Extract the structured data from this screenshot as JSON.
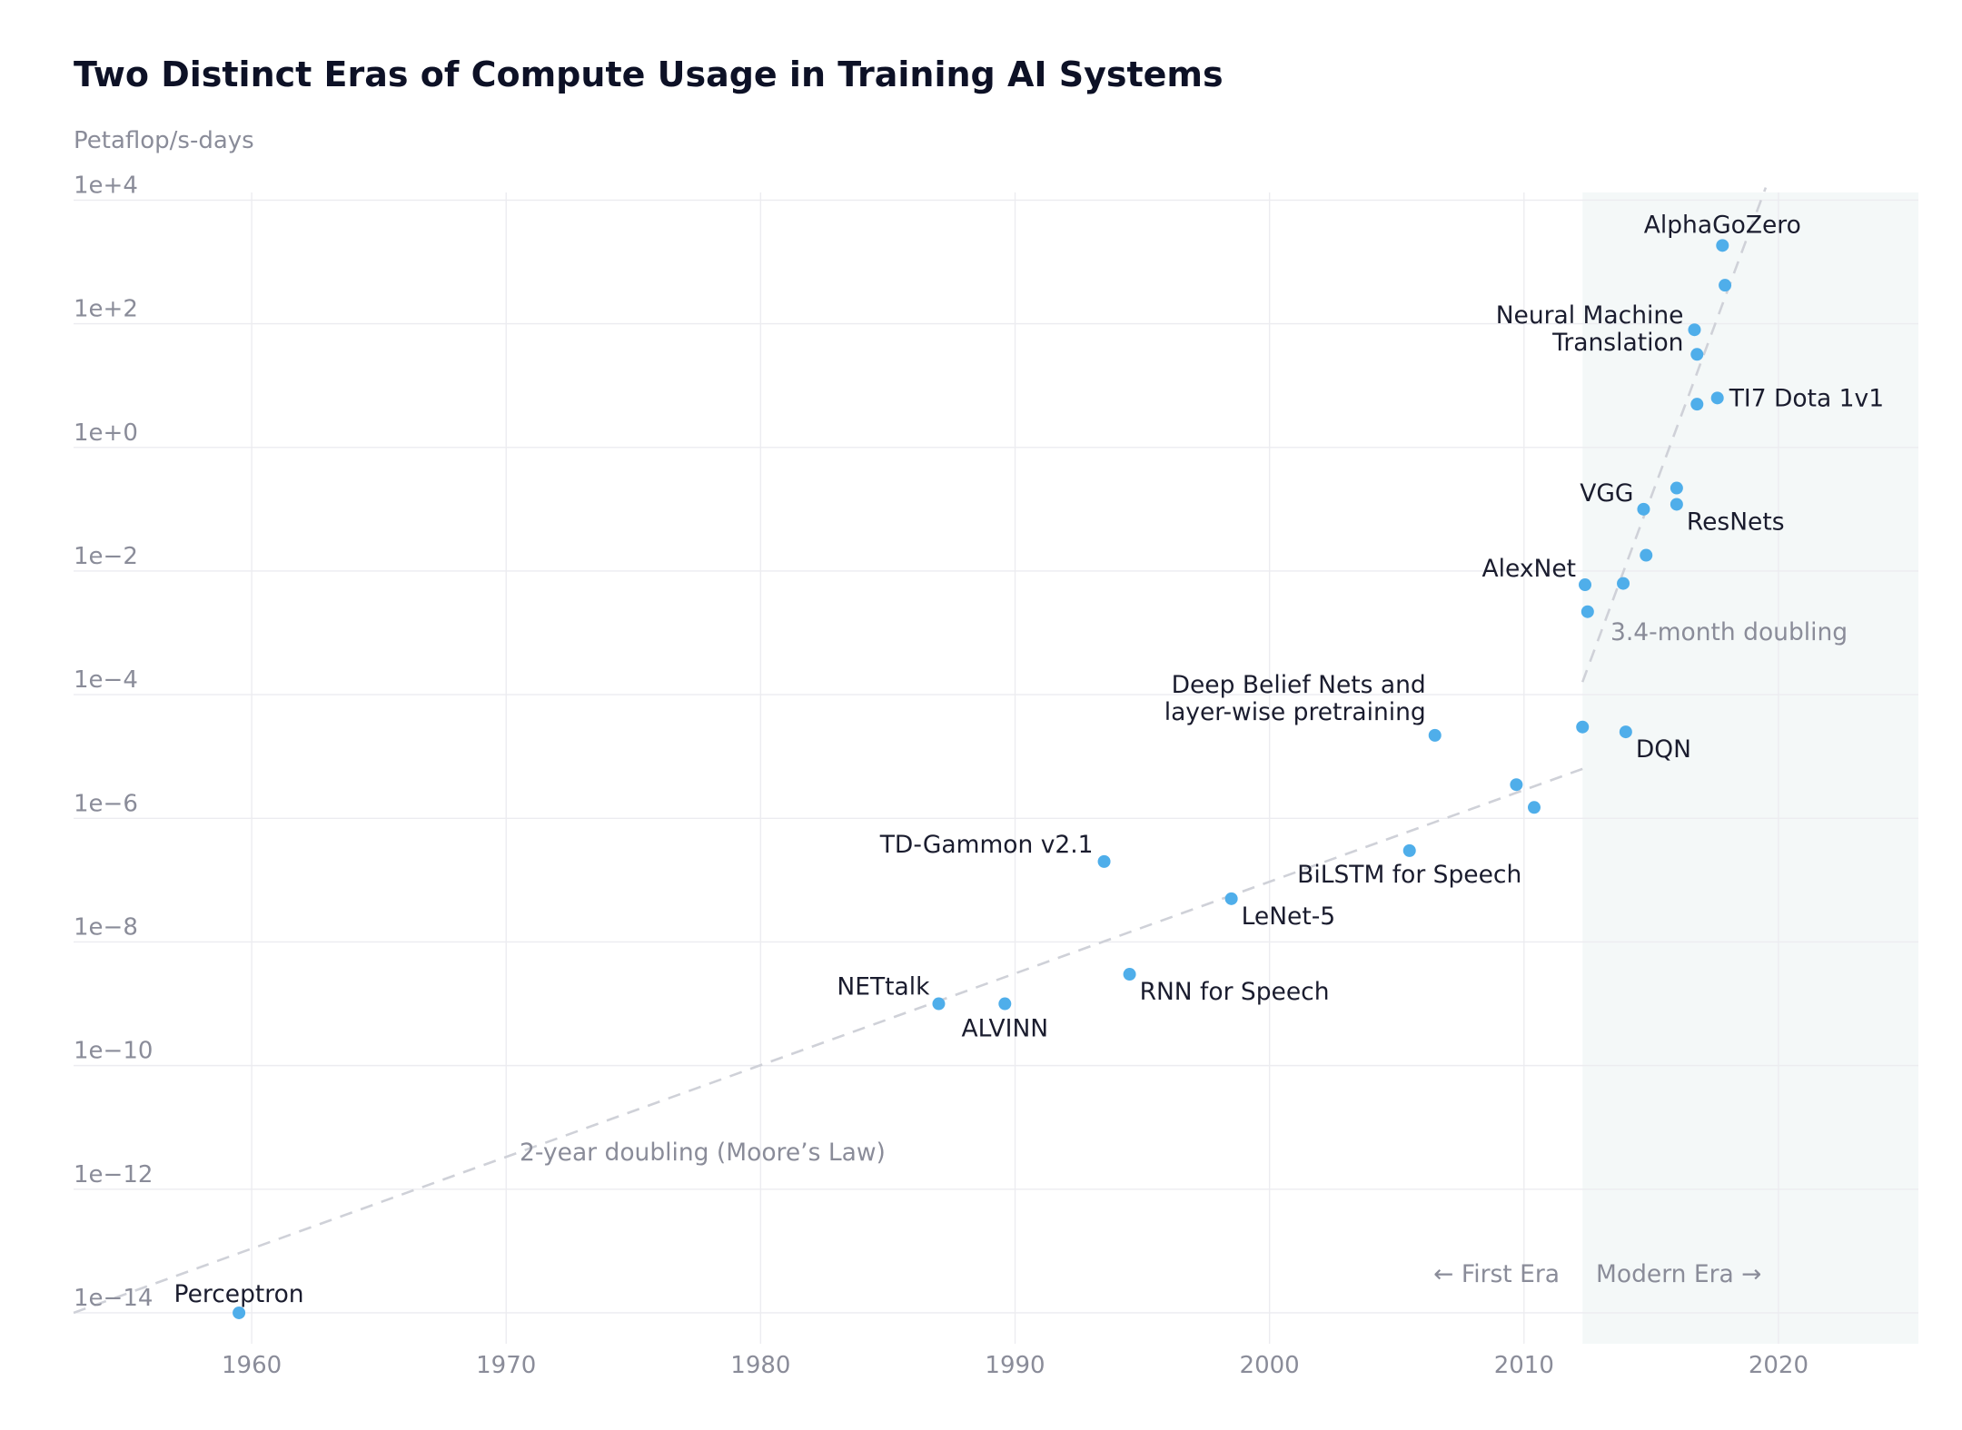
{
  "chart_data": {
    "type": "scatter",
    "title": "Two Distinct Eras of Compute Usage in Training AI Systems",
    "ylabel": "Petaflop/s-days",
    "xlabel": "",
    "y_scale": "log",
    "xlim": [
      1953,
      2025.5
    ],
    "ylim_exponent": [
      -14.5,
      4.3
    ],
    "x_ticks": [
      "1960",
      "1970",
      "1980",
      "1990",
      "2000",
      "2010",
      "2020"
    ],
    "y_ticks": [
      "1e+4",
      "1e+2",
      "1e+0",
      "1e−2",
      "1e−4",
      "1e−6",
      "1e−8",
      "1e−10",
      "1e−12",
      "1e−14"
    ],
    "grid": true,
    "modern_era_start": 2012.3,
    "era_labels": {
      "first": "← First Era",
      "modern": "Modern Era →"
    },
    "trend_lines": [
      {
        "name": "2-year doubling (Moore’s Law)",
        "from": [
          1953,
          1e-14
        ],
        "to": [
          2012.3,
          6.3e-06
        ]
      },
      {
        "name": "3.4-month doubling",
        "from": [
          2012.3,
          0.00016
        ],
        "to": [
          2019.5,
          16000.0
        ]
      }
    ],
    "points": [
      {
        "x": 1959.5,
        "y": 1e-14,
        "label": "Perceptron"
      },
      {
        "x": 1987.0,
        "y": 1e-09,
        "label": "NETtalk"
      },
      {
        "x": 1989.6,
        "y": 1e-09,
        "label": "ALVINN"
      },
      {
        "x": 1993.5,
        "y": 2e-07,
        "label": "TD-Gammon v2.1"
      },
      {
        "x": 1994.5,
        "y": 3e-09,
        "label": "RNN for Speech"
      },
      {
        "x": 1998.5,
        "y": 5e-08,
        "label": "LeNet-5"
      },
      {
        "x": 2005.5,
        "y": 3e-07,
        "label": "BiLSTM for Speech"
      },
      {
        "x": 2006.5,
        "y": 2.2e-05,
        "label": "Deep Belief Nets and layer-wise pretraining"
      },
      {
        "x": 2009.7,
        "y": 3.5e-06,
        "label": ""
      },
      {
        "x": 2010.4,
        "y": 1.5e-06,
        "label": ""
      },
      {
        "x": 2012.3,
        "y": 3e-05,
        "label": ""
      },
      {
        "x": 2012.4,
        "y": 0.006,
        "label": "AlexNet"
      },
      {
        "x": 2012.5,
        "y": 0.0022,
        "label": ""
      },
      {
        "x": 2013.9,
        "y": 0.0063,
        "label": ""
      },
      {
        "x": 2014.0,
        "y": 2.5e-05,
        "label": "DQN"
      },
      {
        "x": 2014.7,
        "y": 0.1,
        "label": "VGG"
      },
      {
        "x": 2014.8,
        "y": 0.018,
        "label": ""
      },
      {
        "x": 2016.0,
        "y": 0.22,
        "label": ""
      },
      {
        "x": 2016.0,
        "y": 0.12,
        "label": "ResNets"
      },
      {
        "x": 2016.7,
        "y": 80,
        "label": "Neural Machine Translation"
      },
      {
        "x": 2016.8,
        "y": 32,
        "label": ""
      },
      {
        "x": 2016.8,
        "y": 5,
        "label": ""
      },
      {
        "x": 2017.6,
        "y": 6.3,
        "label": "TI7 Dota 1v1"
      },
      {
        "x": 2017.8,
        "y": 1850,
        "label": "AlphaGoZero"
      },
      {
        "x": 2017.9,
        "y": 420,
        "label": ""
      }
    ]
  }
}
